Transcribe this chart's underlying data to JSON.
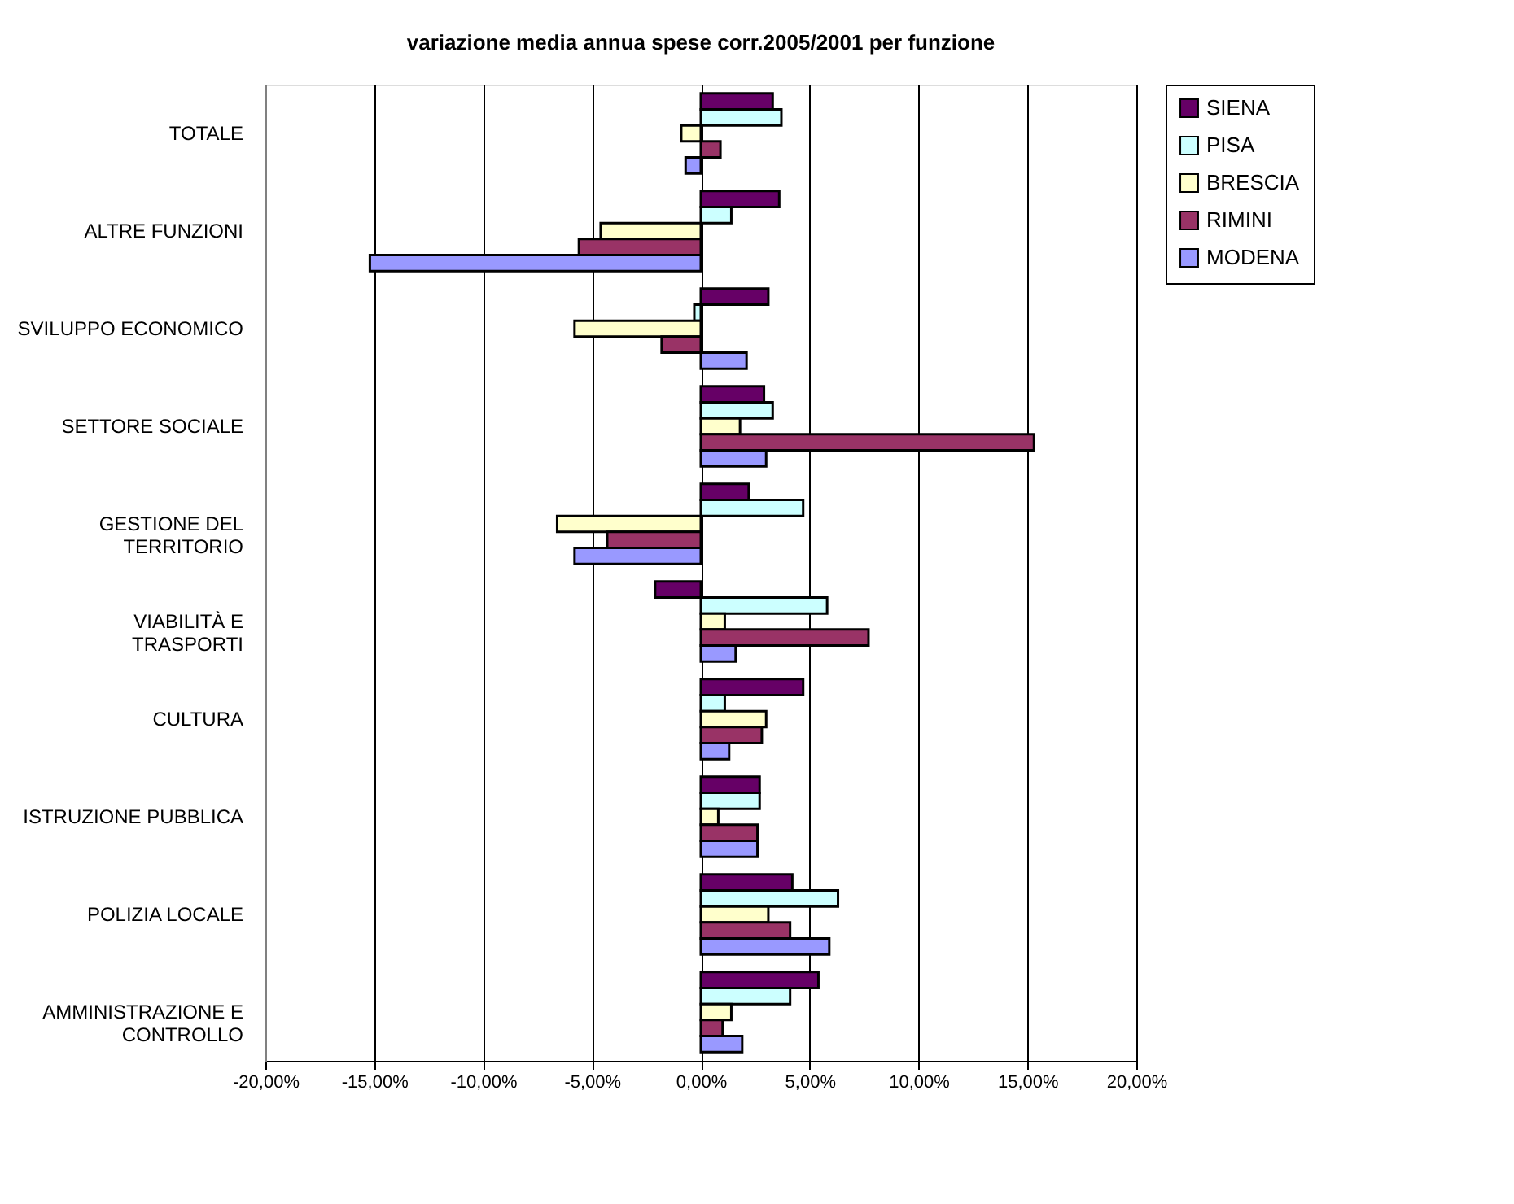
{
  "chart_data": {
    "type": "bar",
    "orientation": "horizontal",
    "title": "variazione media annua spese corr.2005/2001 per funzione",
    "categories": [
      "TOTALE",
      "ALTRE FUNZIONI",
      "SVILUPPO ECONOMICO",
      "SETTORE SOCIALE",
      "GESTIONE DEL TERRITORIO",
      "VIABILITÀ E TRASPORTI",
      "CULTURA",
      "ISTRUZIONE PUBBLICA",
      "POLIZIA LOCALE",
      "AMMINISTRAZIONE E CONTROLLO"
    ],
    "series": [
      {
        "name": "SIENA",
        "color": "#660066",
        "values": [
          3.3,
          3.6,
          3.1,
          2.9,
          2.2,
          -2.1,
          4.7,
          2.7,
          4.2,
          5.4
        ]
      },
      {
        "name": "PISA",
        "color": "#ccffff",
        "values": [
          3.7,
          1.4,
          -0.3,
          3.3,
          4.7,
          5.8,
          1.1,
          2.7,
          6.3,
          4.1
        ]
      },
      {
        "name": "BRESCIA",
        "color": "#ffffcc",
        "values": [
          -0.9,
          -4.6,
          -5.8,
          1.8,
          -6.6,
          1.1,
          3.0,
          0.8,
          3.1,
          1.4
        ]
      },
      {
        "name": "RIMINI",
        "color": "#993366",
        "values": [
          0.9,
          -5.6,
          -1.8,
          15.3,
          -4.3,
          7.7,
          2.8,
          2.6,
          4.1,
          1.0
        ]
      },
      {
        "name": "MODENA",
        "color": "#9999ff",
        "values": [
          -0.7,
          -15.2,
          2.1,
          3.0,
          -5.8,
          1.6,
          1.3,
          2.6,
          5.9,
          1.9
        ]
      }
    ],
    "xlim": [
      -20,
      20
    ],
    "xticks": [
      {
        "value": -20,
        "label": "-20,00%"
      },
      {
        "value": -15,
        "label": "-15,00%"
      },
      {
        "value": -10,
        "label": "-10,00%"
      },
      {
        "value": -5,
        "label": "-5,00%"
      },
      {
        "value": 0,
        "label": "0,00%"
      },
      {
        "value": 5,
        "label": "5,00%"
      },
      {
        "value": 10,
        "label": "10,00%"
      },
      {
        "value": 15,
        "label": "15,00%"
      },
      {
        "value": 20,
        "label": "20,00%"
      }
    ],
    "grid": "x",
    "legend": "right"
  }
}
